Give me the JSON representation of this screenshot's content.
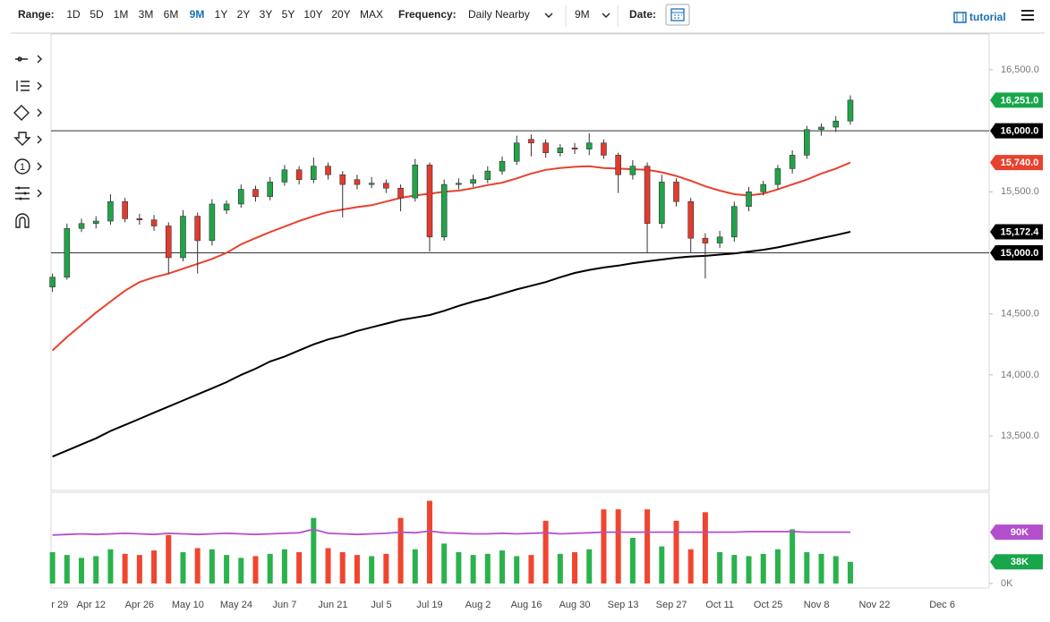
{
  "toolbar": {
    "range_label": "Range:",
    "ranges": [
      "1D",
      "5D",
      "1M",
      "3M",
      "6M",
      "9M",
      "1Y",
      "2Y",
      "3Y",
      "5Y",
      "10Y",
      "20Y",
      "MAX"
    ],
    "active_range_index": 5,
    "frequency_label": "Frequency:",
    "frequency": "Daily Nearby",
    "period": "9M",
    "date_label": "Date:",
    "tutorial": "tutorial",
    "tool_number": "1"
  },
  "chart_data": [
    {
      "type": "candlestick",
      "x": [
        2,
        5,
        8,
        11,
        14,
        17,
        20,
        23,
        26,
        29,
        32,
        35,
        38,
        41,
        44,
        47,
        50,
        53,
        56,
        59,
        62,
        65,
        68,
        71,
        74,
        77,
        80,
        83,
        86,
        89,
        92,
        95,
        98,
        101,
        104,
        107,
        110,
        113,
        116,
        119,
        122,
        125,
        128,
        131,
        134,
        137,
        140,
        143,
        146,
        149,
        152,
        155,
        158,
        161,
        164,
        167
      ],
      "open": [
        14720,
        14800,
        15200,
        15240,
        15260,
        15420,
        15280,
        15270,
        15220,
        14960,
        15300,
        15100,
        15350,
        15400,
        15520,
        15460,
        15580,
        15680,
        15600,
        15710,
        15640,
        15600,
        15560,
        15570,
        15530,
        15450,
        15720,
        15130,
        15560,
        15570,
        15600,
        15670,
        15750,
        15930,
        15900,
        15820,
        15860,
        15850,
        15900,
        15800,
        15640,
        15710,
        15240,
        15580,
        15420,
        15120,
        15080,
        15130,
        15380,
        15500,
        15560,
        15690,
        15800,
        16010,
        16030,
        16080
      ],
      "high": [
        14830,
        15240,
        15280,
        15300,
        15480,
        15450,
        15320,
        15310,
        15250,
        15350,
        15330,
        15440,
        15430,
        15560,
        15550,
        15620,
        15720,
        15710,
        15780,
        15740,
        15670,
        15640,
        15620,
        15600,
        15560,
        15770,
        15740,
        15600,
        15610,
        15640,
        15710,
        15790,
        15960,
        15970,
        15930,
        15890,
        15900,
        15980,
        15930,
        15820,
        15760,
        15740,
        15640,
        15610,
        15450,
        15160,
        15180,
        15420,
        15540,
        15590,
        15720,
        15840,
        16040,
        16060,
        16120,
        16290
      ],
      "low": [
        14680,
        14780,
        15170,
        15200,
        15230,
        15250,
        15230,
        15180,
        14830,
        14930,
        14830,
        15060,
        15320,
        15370,
        15420,
        15430,
        15550,
        15560,
        15570,
        15600,
        15290,
        15520,
        15530,
        15490,
        15340,
        15420,
        15010,
        15100,
        15520,
        15540,
        15570,
        15640,
        15720,
        15790,
        15780,
        15790,
        15810,
        15800,
        15770,
        15490,
        15600,
        15000,
        15200,
        15380,
        15000,
        14790,
        15040,
        15090,
        15340,
        15470,
        15520,
        15650,
        15770,
        15960,
        15990,
        16050
      ],
      "close": [
        14800,
        15200,
        15240,
        15260,
        15420,
        15280,
        15270,
        15220,
        14960,
        15300,
        15100,
        15400,
        15400,
        15520,
        15460,
        15580,
        15680,
        15600,
        15710,
        15640,
        15560,
        15560,
        15570,
        15530,
        15450,
        15720,
        15130,
        15560,
        15570,
        15600,
        15670,
        15750,
        15900,
        15900,
        15820,
        15860,
        15850,
        15900,
        15800,
        15640,
        15710,
        15240,
        15580,
        15420,
        15120,
        15080,
        15130,
        15380,
        15500,
        15560,
        15690,
        15800,
        16010,
        16030,
        16080,
        16251
      ],
      "up_color": "#22a34a",
      "down_color": "#e23b2e",
      "lines": [
        {
          "color": "#e8412c",
          "values": [
            14200,
            14310,
            14410,
            14510,
            14600,
            14690,
            14760,
            14800,
            14830,
            14870,
            14910,
            14950,
            15000,
            15070,
            15120,
            15170,
            15215,
            15260,
            15300,
            15335,
            15355,
            15375,
            15390,
            15420,
            15450,
            15470,
            15485,
            15500,
            15510,
            15530,
            15555,
            15575,
            15610,
            15650,
            15680,
            15695,
            15705,
            15710,
            15695,
            15690,
            15685,
            15680,
            15660,
            15630,
            15590,
            15545,
            15510,
            15480,
            15470,
            15485,
            15520,
            15560,
            15600,
            15650,
            15690,
            15740
          ]
        },
        {
          "color": "#000000",
          "values": [
            13330,
            13380,
            13430,
            13480,
            13540,
            13590,
            13640,
            13690,
            13740,
            13790,
            13840,
            13890,
            13940,
            14000,
            14050,
            14110,
            14150,
            14200,
            14250,
            14290,
            14320,
            14360,
            14390,
            14420,
            14450,
            14470,
            14490,
            14525,
            14565,
            14600,
            14630,
            14665,
            14700,
            14730,
            14760,
            14800,
            14835,
            14860,
            14880,
            14895,
            14915,
            14930,
            14945,
            14960,
            14970,
            14975,
            14985,
            14995,
            15010,
            15025,
            15045,
            15070,
            15095,
            15120,
            15145,
            15172.4
          ]
        }
      ],
      "reference_lines": [
        16000,
        15000
      ],
      "xlim": [
        1.7,
        195.7
      ],
      "xticks": [
        {
          "value": 3.5,
          "label": "r 29"
        },
        {
          "value": 10,
          "label": "Apr 12"
        },
        {
          "value": 20,
          "label": "Apr 26"
        },
        {
          "value": 30,
          "label": "May 10"
        },
        {
          "value": 40,
          "label": "May 24"
        },
        {
          "value": 50,
          "label": "Jun 7"
        },
        {
          "value": 60,
          "label": "Jun 21"
        },
        {
          "value": 70,
          "label": "Jul 5"
        },
        {
          "value": 80,
          "label": "Jul 19"
        },
        {
          "value": 90,
          "label": "Aug 2"
        },
        {
          "value": 100,
          "label": "Aug 16"
        },
        {
          "value": 110,
          "label": "Aug 30"
        },
        {
          "value": 120,
          "label": "Sep 13"
        },
        {
          "value": 130,
          "label": "Sep 27"
        },
        {
          "value": 140,
          "label": "Oct 11"
        },
        {
          "value": 150,
          "label": "Oct 25"
        },
        {
          "value": 160,
          "label": "Nov 8"
        },
        {
          "value": 172,
          "label": "Nov 22"
        },
        {
          "value": 186,
          "label": "Dec 6"
        }
      ],
      "ylim": [
        13053,
        16793
      ],
      "yticks": [
        {
          "value": 16500,
          "label": "16,500.0"
        },
        {
          "value": 15500,
          "label": "15,500.0"
        },
        {
          "value": 14500,
          "label": "14,500.0"
        },
        {
          "value": 14000,
          "label": "14,000.0"
        },
        {
          "value": 13500,
          "label": "13,500.0"
        }
      ],
      "price_labels": [
        {
          "value": 16251,
          "label": "16,251.0",
          "color": "#18a64a"
        },
        {
          "value": 16000,
          "label": "16,000.0",
          "color": "#000000"
        },
        {
          "value": 15740,
          "label": "15,740.0",
          "color": "#e8412c"
        },
        {
          "value": 15172.4,
          "label": "15,172.4",
          "color": "#000000"
        },
        {
          "value": 15000,
          "label": "15,000.0",
          "color": "#000000"
        }
      ]
    },
    {
      "type": "bar",
      "x": [
        2,
        5,
        8,
        11,
        14,
        17,
        20,
        23,
        26,
        29,
        32,
        35,
        38,
        41,
        44,
        47,
        50,
        53,
        56,
        59,
        62,
        65,
        68,
        71,
        74,
        77,
        80,
        83,
        86,
        89,
        92,
        95,
        98,
        101,
        104,
        107,
        110,
        113,
        116,
        119,
        122,
        125,
        128,
        131,
        134,
        137,
        140,
        143,
        146,
        149,
        152,
        155,
        158,
        161,
        164,
        167
      ],
      "values": [
        55,
        50,
        45,
        48,
        60,
        52,
        50,
        58,
        85,
        55,
        62,
        60,
        50,
        45,
        48,
        52,
        60,
        55,
        115,
        62,
        55,
        50,
        48,
        52,
        115,
        60,
        145,
        70,
        55,
        50,
        52,
        58,
        48,
        50,
        110,
        52,
        55,
        60,
        130,
        130,
        80,
        130,
        65,
        110,
        60,
        125,
        55,
        50,
        48,
        52,
        60,
        95,
        55,
        52,
        48,
        38
      ],
      "up_color": "#2bb24c",
      "down_color": "#f0452f",
      "line": {
        "color": "#b34fcc",
        "values": [
          85,
          86,
          87,
          86,
          87,
          88,
          87,
          86,
          88,
          87,
          86,
          87,
          88,
          87,
          86,
          87,
          88,
          89,
          95,
          88,
          87,
          86,
          87,
          88,
          90,
          89,
          92,
          89,
          88,
          87,
          87,
          88,
          87,
          88,
          89,
          87,
          88,
          89,
          90,
          90,
          90,
          90,
          90,
          90,
          90,
          90,
          90,
          90,
          91,
          91,
          91,
          91,
          90,
          90,
          90,
          90
        ]
      },
      "xlim": [
        1.7,
        195.7
      ],
      "ylim": [
        0,
        160
      ],
      "yticks": [
        {
          "value": 0,
          "label": "0K"
        }
      ],
      "price_labels": [
        {
          "value": 90,
          "label": "90K",
          "color": "#b34fcc"
        },
        {
          "value": 38,
          "label": "38K",
          "color": "#18a64a"
        }
      ]
    }
  ]
}
